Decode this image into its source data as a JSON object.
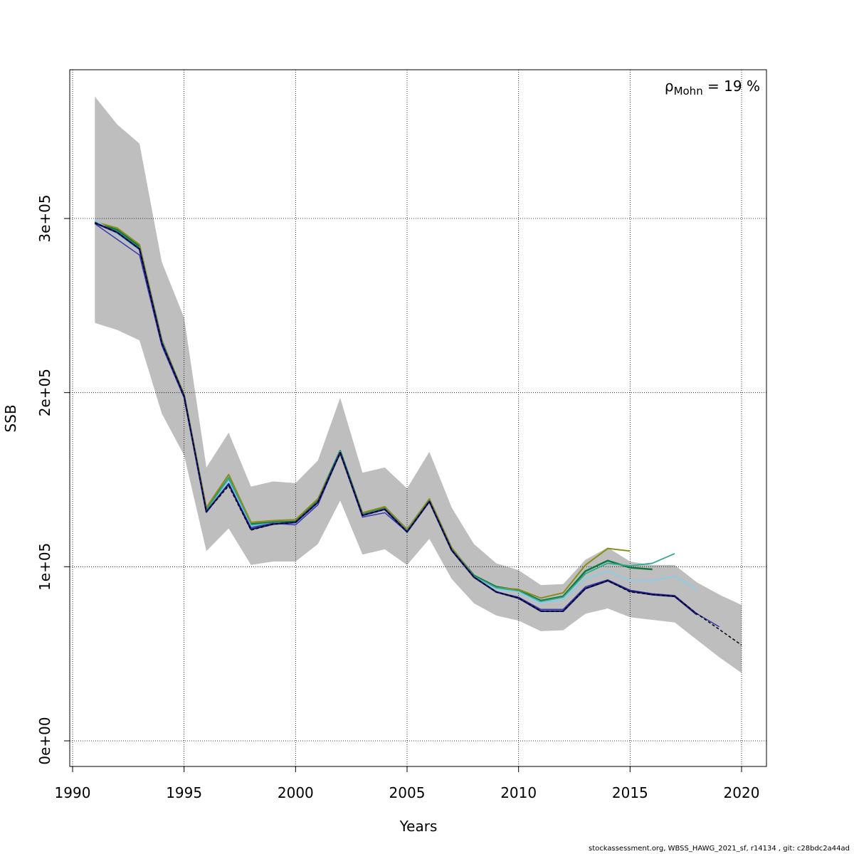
{
  "chart_data": {
    "type": "line",
    "xlabel": "Years",
    "ylabel": "SSB",
    "xlim": [
      1990,
      2021
    ],
    "ylim": [
      -15000,
      385000
    ],
    "x_ticks": [
      1990,
      1995,
      2000,
      2005,
      2010,
      2015,
      2020
    ],
    "x_tick_labels": [
      "1990",
      "1995",
      "2000",
      "2005",
      "2010",
      "2015",
      "2020"
    ],
    "y_ticks": [
      0,
      100000,
      200000,
      300000
    ],
    "y_tick_labels": [
      "0e+00",
      "1e+05",
      "2e+05",
      "3e+05"
    ],
    "grid": true,
    "annotation": {
      "rho": "ρ",
      "subscript": "Mohn",
      "value": " = 19 %"
    },
    "confidence_band": {
      "color": "#bebebe",
      "x": [
        1991,
        1992,
        1993,
        1994,
        1995,
        1996,
        1997,
        1998,
        1999,
        2000,
        2001,
        2002,
        2003,
        2004,
        2005,
        2006,
        2007,
        2008,
        2009,
        2010,
        2011,
        2012,
        2013,
        2014,
        2015,
        2016,
        2017,
        2018,
        2019,
        2020
      ],
      "lower": [
        240000,
        236000,
        230000,
        188000,
        164000,
        109000,
        122000,
        101000,
        103000,
        103000,
        113000,
        138000,
        107000,
        110000,
        101000,
        116000,
        93000,
        79000,
        72000,
        69000,
        63000,
        63500,
        73000,
        76000,
        71000,
        69500,
        68000,
        58000,
        48000,
        39000
      ],
      "upper": [
        370000,
        354000,
        343000,
        275000,
        243000,
        157000,
        177000,
        146000,
        149000,
        148000,
        161000,
        197000,
        154000,
        157000,
        145000,
        166000,
        134000,
        113000,
        102000,
        98000,
        89500,
        90000,
        104000,
        111000,
        103000,
        101000,
        101000,
        91000,
        84000,
        78000
      ]
    },
    "series": [
      {
        "color": "#0b7a3e",
        "width": 2.5,
        "dash": "",
        "x": [
          1991,
          1992,
          1993,
          1994,
          1995,
          1996,
          1997,
          1998,
          1999,
          2000,
          2001,
          2002,
          2003,
          2004,
          2005,
          2006,
          2007,
          2008,
          2009,
          2010,
          2011,
          2012,
          2013,
          2014,
          2015,
          2016
        ],
        "y": [
          297500,
          293500,
          284000,
          230000,
          198000,
          133000,
          151000,
          124500,
          125500,
          126000,
          138500,
          166500,
          130500,
          134000,
          121000,
          138500,
          110500,
          95000,
          88500,
          86500,
          80500,
          83000,
          97500,
          103500,
          99500,
          98500
        ]
      },
      {
        "color": "#8c8c1a",
        "width": 2,
        "dash": "",
        "x": [
          1991,
          1992,
          1993,
          1994,
          1995,
          1996,
          1997,
          1998,
          1999,
          2000,
          2001,
          2002,
          2003,
          2004,
          2005,
          2006,
          2007,
          2008,
          2009,
          2010,
          2011,
          2012,
          2013,
          2014,
          2015
        ],
        "y": [
          298000,
          294500,
          285000,
          230000,
          199000,
          134000,
          153000,
          125500,
          126500,
          127000,
          139000,
          165000,
          131000,
          134500,
          121500,
          139000,
          111000,
          94500,
          88000,
          87000,
          82000,
          85000,
          101000,
          110500,
          109000
        ]
      },
      {
        "color": "#35a98f",
        "width": 1.8,
        "dash": "",
        "x": [
          1991,
          1992,
          1993,
          1994,
          1995,
          1996,
          1997,
          1998,
          1999,
          2000,
          2001,
          2002,
          2003,
          2004,
          2005,
          2006,
          2007,
          2008,
          2009,
          2010,
          2011,
          2012,
          2013,
          2014,
          2015,
          2016,
          2017
        ],
        "y": [
          297000,
          292500,
          283000,
          229500,
          198000,
          132500,
          151000,
          124000,
          125000,
          125500,
          137500,
          166000,
          130000,
          133500,
          120500,
          138000,
          110000,
          94500,
          88000,
          86000,
          80000,
          82500,
          96000,
          102000,
          100500,
          102000,
          107500
        ]
      },
      {
        "color": "#87ceeb",
        "width": 1.8,
        "dash": "",
        "x": [
          1991,
          1992,
          1993,
          1994,
          1995,
          1996,
          1997,
          1998,
          1999,
          2000,
          2001,
          2002,
          2003,
          2004,
          2005,
          2006,
          2007,
          2008,
          2009,
          2010,
          2011,
          2012,
          2013,
          2014,
          2015,
          2016,
          2017,
          2018
        ],
        "y": [
          299000,
          291000,
          282000,
          228000,
          198000,
          131000,
          149000,
          123000,
          125000,
          125000,
          137000,
          166000,
          129500,
          133000,
          119500,
          137500,
          109500,
          94000,
          87000,
          85500,
          79000,
          81000,
          93000,
          97500,
          92000,
          92000,
          94500,
          87000
        ]
      },
      {
        "color": "#3a3ab0",
        "width": 1.5,
        "dash": "",
        "x": [
          1991,
          1992,
          1993,
          1994,
          1995,
          1996,
          1997,
          1998,
          1999,
          2000,
          2001,
          2002,
          2003,
          2004,
          2005,
          2006,
          2007,
          2008,
          2009,
          2010,
          2011,
          2012,
          2013,
          2014,
          2015,
          2016,
          2017,
          2018,
          2019
        ],
        "y": [
          297000,
          288000,
          279000,
          227000,
          197000,
          131500,
          147500,
          122500,
          125000,
          124000,
          135500,
          165500,
          128500,
          131000,
          120000,
          137500,
          109500,
          94000,
          85500,
          82500,
          75500,
          75500,
          88500,
          92500,
          86500,
          84500,
          83500,
          73000,
          65500
        ]
      },
      {
        "color": "#1a1a80",
        "width": 2.5,
        "dash": "",
        "x": [
          1991,
          1992,
          1993,
          1994,
          1995,
          1996,
          1997,
          1998,
          1999,
          2000,
          2001,
          2002,
          2003,
          2004,
          2005,
          2006,
          2007,
          2008,
          2009,
          2010,
          2011,
          2012,
          2013,
          2014,
          2015,
          2016,
          2017,
          2018
        ],
        "y": [
          297500,
          292000,
          282500,
          228500,
          198000,
          131500,
          147500,
          121500,
          124500,
          125500,
          137000,
          165500,
          129500,
          133000,
          120000,
          137500,
          109500,
          94000,
          85500,
          82000,
          74500,
          74500,
          87500,
          92000,
          86000,
          84000,
          83000,
          72500
        ]
      },
      {
        "color": "#000000",
        "width": 1.5,
        "dash": "4,3",
        "x": [
          1991,
          1992,
          1993,
          1994,
          1995,
          1996,
          1997,
          1998,
          1999,
          2000,
          2001,
          2002,
          2003,
          2004,
          2005,
          2006,
          2007,
          2008,
          2009,
          2010,
          2011,
          2012,
          2013,
          2014,
          2015,
          2016,
          2017,
          2018,
          2019,
          2020
        ],
        "y": [
          297500,
          292000,
          282500,
          228500,
          198000,
          131500,
          146500,
          121000,
          124500,
          125500,
          137000,
          165500,
          129500,
          133000,
          120000,
          137500,
          109500,
          94000,
          85500,
          82000,
          74500,
          74500,
          87500,
          92000,
          85500,
          84000,
          83000,
          73000,
          64000,
          55000
        ]
      }
    ]
  },
  "footer": "stockassessment.org, WBSS_HAWG_2021_sf, r14134 , git: c28bdc2a44ad"
}
